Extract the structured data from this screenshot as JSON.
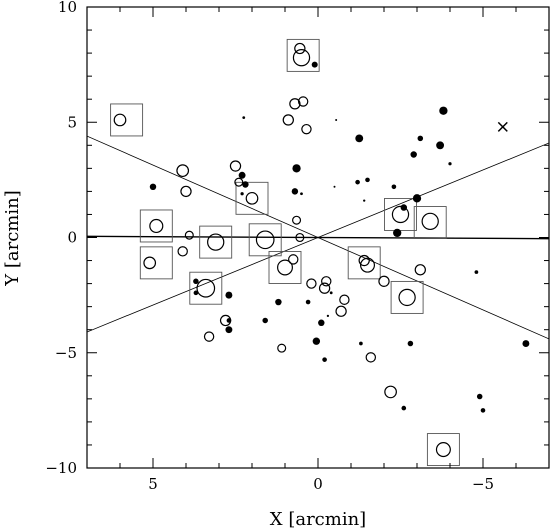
{
  "chart_data": {
    "type": "scatter",
    "xlabel": "X [arcmin]",
    "ylabel": "Y [arcmin]",
    "xlim": [
      7,
      -7
    ],
    "ylim": [
      -10,
      10
    ],
    "x_ticks": [
      {
        "value": 5,
        "label": "5"
      },
      {
        "value": 0,
        "label": "0"
      },
      {
        "value": -5,
        "label": "−5"
      }
    ],
    "y_ticks": [
      {
        "value": 10,
        "label": "10"
      },
      {
        "value": 5,
        "label": "5"
      },
      {
        "value": 0,
        "label": "0"
      },
      {
        "value": -5,
        "label": "−5"
      },
      {
        "value": -10,
        "label": "−10"
      }
    ],
    "grid": false,
    "legend": "none",
    "lines": [
      {
        "x": [
          7,
          -7
        ],
        "y": [
          0.05,
          -0.05
        ]
      },
      {
        "x": [
          7,
          -7
        ],
        "y": [
          4.4,
          -4.4
        ]
      },
      {
        "x": [
          7,
          -7
        ],
        "y": [
          -4.1,
          4.1
        ]
      }
    ],
    "open_circles": [
      {
        "x": 6.0,
        "y": 5.1,
        "r": 0.25
      },
      {
        "x": 4.1,
        "y": 2.9,
        "r": 0.25
      },
      {
        "x": 4.0,
        "y": 2.0,
        "r": 0.22
      },
      {
        "x": 4.9,
        "y": 0.5,
        "r": 0.28
      },
      {
        "x": 3.9,
        "y": 0.1,
        "r": 0.17
      },
      {
        "x": 4.1,
        "y": -0.6,
        "r": 0.2
      },
      {
        "x": 5.1,
        "y": -1.1,
        "r": 0.25
      },
      {
        "x": 3.4,
        "y": -2.2,
        "r": 0.38
      },
      {
        "x": 3.3,
        "y": -4.3,
        "r": 0.2
      },
      {
        "x": 2.8,
        "y": -3.6,
        "r": 0.22
      },
      {
        "x": 2.5,
        "y": 3.1,
        "r": 0.22
      },
      {
        "x": 2.4,
        "y": 2.4,
        "r": 0.17
      },
      {
        "x": 2.0,
        "y": 1.7,
        "r": 0.25
      },
      {
        "x": 3.1,
        "y": -0.2,
        "r": 0.35
      },
      {
        "x": 1.6,
        "y": -0.1,
        "r": 0.38
      },
      {
        "x": 0.55,
        "y": 8.2,
        "r": 0.22
      },
      {
        "x": 0.5,
        "y": 7.8,
        "r": 0.35
      },
      {
        "x": 0.7,
        "y": 5.8,
        "r": 0.22
      },
      {
        "x": 0.45,
        "y": 5.9,
        "r": 0.2
      },
      {
        "x": 0.9,
        "y": 5.1,
        "r": 0.22
      },
      {
        "x": 0.35,
        "y": 4.7,
        "r": 0.2
      },
      {
        "x": 0.65,
        "y": 0.75,
        "r": 0.17
      },
      {
        "x": 0.55,
        "y": 0.0,
        "r": 0.17
      },
      {
        "x": 0.75,
        "y": -0.95,
        "r": 0.2
      },
      {
        "x": 1.0,
        "y": -1.3,
        "r": 0.32
      },
      {
        "x": 1.1,
        "y": -4.8,
        "r": 0.17
      },
      {
        "x": 0.2,
        "y": -2.0,
        "r": 0.2
      },
      {
        "x": -0.2,
        "y": -2.2,
        "r": 0.22
      },
      {
        "x": -0.25,
        "y": -1.9,
        "r": 0.2
      },
      {
        "x": -0.7,
        "y": -3.2,
        "r": 0.22
      },
      {
        "x": -0.8,
        "y": -2.7,
        "r": 0.2
      },
      {
        "x": -1.4,
        "y": -1.0,
        "r": 0.22
      },
      {
        "x": -1.5,
        "y": -1.2,
        "r": 0.3
      },
      {
        "x": -1.6,
        "y": -5.2,
        "r": 0.2
      },
      {
        "x": -2.0,
        "y": -1.9,
        "r": 0.22
      },
      {
        "x": -2.2,
        "y": -6.7,
        "r": 0.25
      },
      {
        "x": -2.5,
        "y": 1.0,
        "r": 0.35
      },
      {
        "x": -3.4,
        "y": 0.7,
        "r": 0.35
      },
      {
        "x": -2.7,
        "y": -2.6,
        "r": 0.35
      },
      {
        "x": -3.1,
        "y": -1.4,
        "r": 0.22
      },
      {
        "x": -3.8,
        "y": -9.2,
        "r": 0.3
      }
    ],
    "filled_circles": [
      {
        "x": 5.0,
        "y": 2.2,
        "r": 0.14
      },
      {
        "x": 3.7,
        "y": -1.9,
        "r": 0.12
      },
      {
        "x": 3.7,
        "y": -2.4,
        "r": 0.1
      },
      {
        "x": 2.7,
        "y": -2.5,
        "r": 0.15
      },
      {
        "x": 2.7,
        "y": -4.0,
        "r": 0.15
      },
      {
        "x": 2.3,
        "y": 2.7,
        "r": 0.15
      },
      {
        "x": 2.2,
        "y": 2.3,
        "r": 0.14
      },
      {
        "x": 2.25,
        "y": 5.2,
        "r": 0.06
      },
      {
        "x": 2.3,
        "y": 1.9,
        "r": 0.07
      },
      {
        "x": 2.7,
        "y": -3.6,
        "r": 0.1
      },
      {
        "x": 1.6,
        "y": -3.6,
        "r": 0.12
      },
      {
        "x": 1.2,
        "y": -2.8,
        "r": 0.14
      },
      {
        "x": 0.65,
        "y": 3.0,
        "r": 0.18
      },
      {
        "x": 0.7,
        "y": 2.0,
        "r": 0.14
      },
      {
        "x": 0.5,
        "y": 1.9,
        "r": 0.06
      },
      {
        "x": 0.1,
        "y": 7.5,
        "r": 0.13
      },
      {
        "x": 0.3,
        "y": -2.8,
        "r": 0.1
      },
      {
        "x": 0.05,
        "y": -4.5,
        "r": 0.16
      },
      {
        "x": -0.1,
        "y": -3.7,
        "r": 0.14
      },
      {
        "x": -0.2,
        "y": -5.3,
        "r": 0.1
      },
      {
        "x": -0.4,
        "y": -2.4,
        "r": 0.06
      },
      {
        "x": -0.3,
        "y": -3.4,
        "r": 0.05
      },
      {
        "x": -0.55,
        "y": 5.1,
        "r": 0.04
      },
      {
        "x": -0.5,
        "y": 2.2,
        "r": 0.04
      },
      {
        "x": -1.25,
        "y": 4.3,
        "r": 0.17
      },
      {
        "x": -1.2,
        "y": 2.4,
        "r": 0.1
      },
      {
        "x": -1.5,
        "y": 2.5,
        "r": 0.1
      },
      {
        "x": -1.4,
        "y": 1.6,
        "r": 0.05
      },
      {
        "x": -1.3,
        "y": -4.6,
        "r": 0.08
      },
      {
        "x": -2.3,
        "y": 2.2,
        "r": 0.1
      },
      {
        "x": -2.4,
        "y": 0.2,
        "r": 0.18
      },
      {
        "x": -2.6,
        "y": 1.3,
        "r": 0.14
      },
      {
        "x": -2.6,
        "y": -7.4,
        "r": 0.1
      },
      {
        "x": -2.8,
        "y": -4.6,
        "r": 0.12
      },
      {
        "x": -2.9,
        "y": 3.6,
        "r": 0.14
      },
      {
        "x": -3.0,
        "y": 1.7,
        "r": 0.18
      },
      {
        "x": -3.1,
        "y": 4.3,
        "r": 0.12
      },
      {
        "x": -3.7,
        "y": 4.0,
        "r": 0.17
      },
      {
        "x": -3.8,
        "y": 5.5,
        "r": 0.18
      },
      {
        "x": -4.0,
        "y": 3.2,
        "r": 0.07
      },
      {
        "x": -4.8,
        "y": -1.5,
        "r": 0.08
      },
      {
        "x": -4.9,
        "y": -6.9,
        "r": 0.12
      },
      {
        "x": -5.0,
        "y": -7.5,
        "r": 0.1
      },
      {
        "x": -6.3,
        "y": -4.6,
        "r": 0.15
      }
    ],
    "squares": [
      {
        "x": 5.8,
        "y": 5.1
      },
      {
        "x": 4.9,
        "y": 0.5
      },
      {
        "x": 4.9,
        "y": -1.1
      },
      {
        "x": 3.4,
        "y": -2.2
      },
      {
        "x": 3.1,
        "y": -0.2
      },
      {
        "x": 2.0,
        "y": 1.7
      },
      {
        "x": 1.6,
        "y": -0.1
      },
      {
        "x": 0.45,
        "y": 7.9
      },
      {
        "x": 1.0,
        "y": -1.3
      },
      {
        "x": -1.4,
        "y": -1.1
      },
      {
        "x": -2.5,
        "y": 1.0
      },
      {
        "x": -3.4,
        "y": 0.65
      },
      {
        "x": -2.7,
        "y": -2.6
      },
      {
        "x": -3.8,
        "y": -9.2
      }
    ],
    "crosses": [
      {
        "x": -5.6,
        "y": 4.8
      }
    ]
  }
}
